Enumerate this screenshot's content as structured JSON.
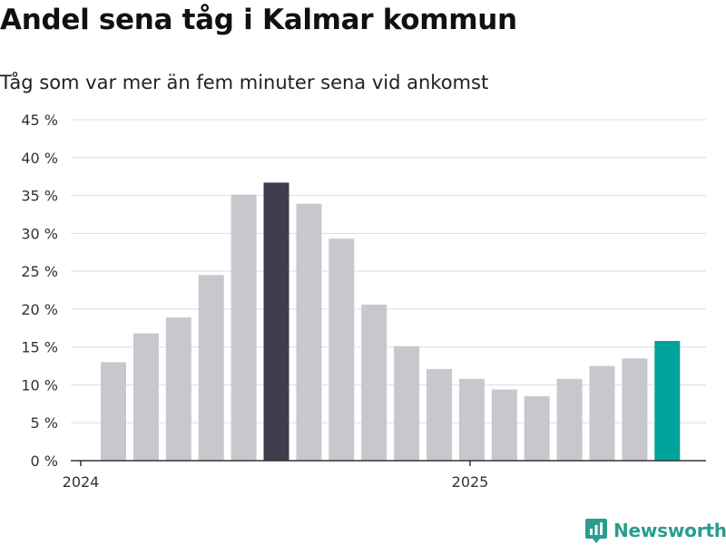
{
  "title": "Andel sena tåg i Kalmar kommun",
  "subtitle": "Tåg som var mer än fem minuter sena vid ankomst",
  "brand": {
    "name": "Newsworthy",
    "color": "#2a9d8f",
    "icon": "newsworthy-logo-icon"
  },
  "colors": {
    "bar": "#c8c7ce",
    "highlight": "#3f3d4d",
    "latest": "#00a39a",
    "grid": "#dedde3",
    "axis": "#333333"
  },
  "chart_data": {
    "type": "bar",
    "title": "Andel sena tåg i Kalmar kommun",
    "subtitle": "Tåg som var mer än fem minuter sena vid ankomst",
    "x_ticks": [
      "2024",
      "2025"
    ],
    "y_ticks": [
      "0 %",
      "5 %",
      "10 %",
      "15 %",
      "20 %",
      "25 %",
      "30 %",
      "35 %",
      "40 %",
      "45 %"
    ],
    "ylim": [
      0,
      45
    ],
    "grid": true,
    "values": [
      13.0,
      16.8,
      18.9,
      24.5,
      35.1,
      36.7,
      33.9,
      29.3,
      20.6,
      15.1,
      12.1,
      10.8,
      9.4,
      8.5,
      10.8,
      12.5,
      13.5,
      15.8
    ],
    "highlight_index": 5,
    "latest_index": 17
  }
}
